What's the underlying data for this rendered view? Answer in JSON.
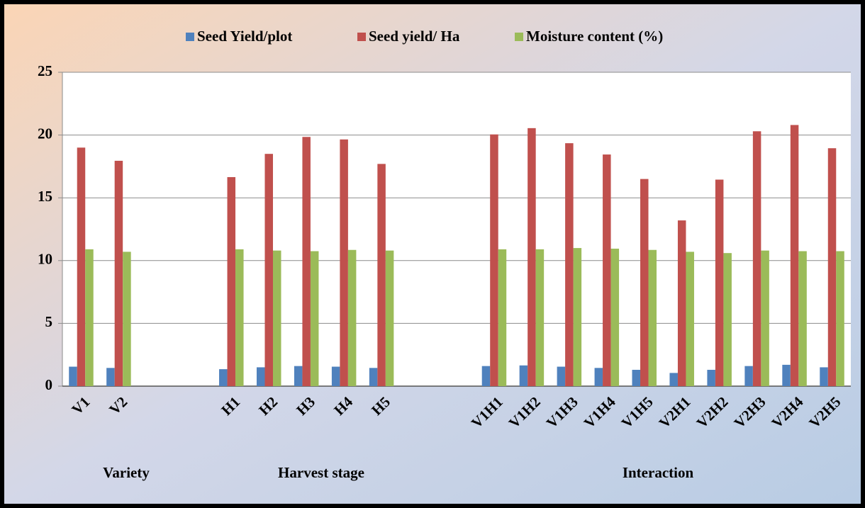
{
  "chart_data": {
    "type": "bar",
    "categories": [
      "V1",
      "V2",
      null,
      null,
      "H1",
      "H2",
      "H3",
      "H4",
      "H5",
      null,
      null,
      "V1H1",
      "V1H2",
      "V1H3",
      "V1H4",
      "V1H5",
      "V2H1",
      "V2H2",
      "V2H3",
      "V2H4",
      "V2H5"
    ],
    "series": [
      {
        "name": "Seed Yield/plot",
        "color": "#4f81bd",
        "values": [
          1.55,
          1.45,
          null,
          null,
          1.35,
          1.5,
          1.6,
          1.55,
          1.45,
          null,
          null,
          1.6,
          1.65,
          1.55,
          1.45,
          1.3,
          1.05,
          1.3,
          1.6,
          1.7,
          1.5
        ]
      },
      {
        "name": "Seed yield/ Ha",
        "color": "#c0504d",
        "values": [
          19.0,
          17.95,
          null,
          null,
          16.65,
          18.5,
          19.85,
          19.65,
          17.7,
          null,
          null,
          20.05,
          20.55,
          19.35,
          18.45,
          16.5,
          13.2,
          16.45,
          20.3,
          20.8,
          18.95
        ]
      },
      {
        "name": "Moisture content (%)",
        "color": "#9bbb59",
        "values": [
          10.9,
          10.7,
          null,
          null,
          10.9,
          10.8,
          10.75,
          10.85,
          10.8,
          null,
          null,
          10.9,
          10.9,
          11.0,
          10.95,
          10.85,
          10.7,
          10.6,
          10.8,
          10.75,
          10.75
        ]
      }
    ],
    "group_labels": [
      "Variety",
      "Harvest stage",
      "Interaction"
    ],
    "ylim": [
      0,
      25
    ],
    "yticks": [
      0,
      5,
      10,
      15,
      20,
      25
    ],
    "grid": true,
    "legend": "top"
  }
}
